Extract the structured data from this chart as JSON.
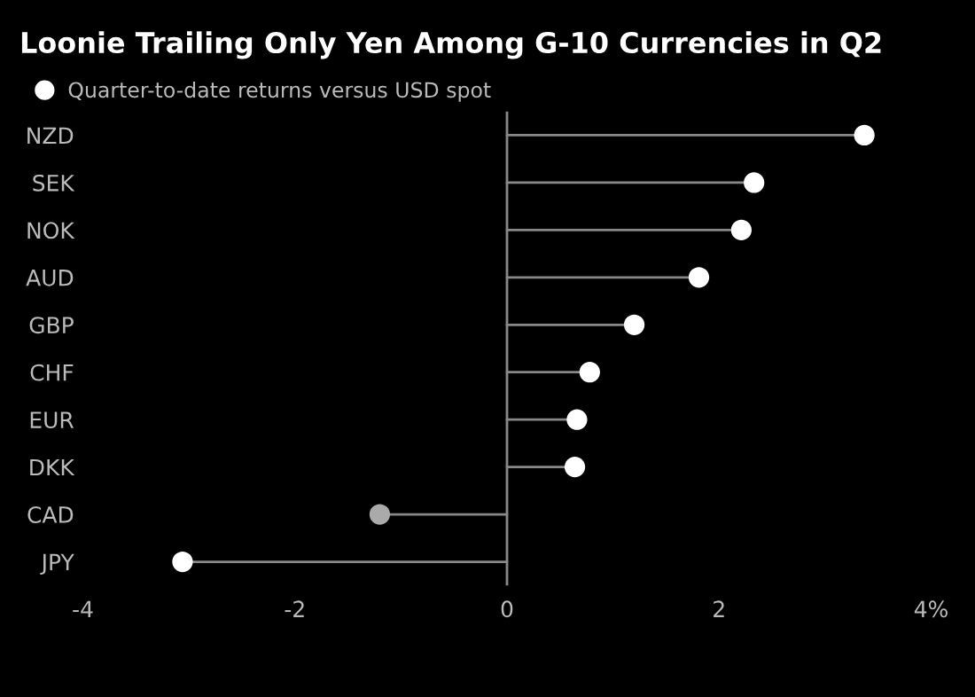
{
  "chart_data": {
    "type": "lollipop",
    "orientation": "horizontal",
    "title": "Loonie Trailing Only Yen Among G-10 Currencies in Q2",
    "categories": [
      "NZD",
      "SEK",
      "NOK",
      "AUD",
      "GBP",
      "CHF",
      "EUR",
      "DKK",
      "CAD",
      "JPY"
    ],
    "series": [
      {
        "name": "Quarter-to-date returns versus USD spot",
        "color": "#ffffff",
        "colors": [
          "#ffffff",
          "#ffffff",
          "#ffffff",
          "#ffffff",
          "#ffffff",
          "#ffffff",
          "#ffffff",
          "#ffffff",
          "#aaaaaa",
          "#ffffff"
        ],
        "values": [
          3.37,
          2.33,
          2.21,
          1.81,
          1.2,
          0.78,
          0.66,
          0.64,
          -1.2,
          -3.06
        ]
      }
    ],
    "xlim": [
      -4,
      4
    ],
    "xticks": [
      -4,
      -2,
      0,
      2,
      {
        "value": 4,
        "label": "4%"
      }
    ],
    "ref_lines": [
      {
        "axis": "x",
        "value": 0,
        "color": "#888888"
      }
    ],
    "legend": "top left",
    "marker": "circle",
    "grid": false
  }
}
